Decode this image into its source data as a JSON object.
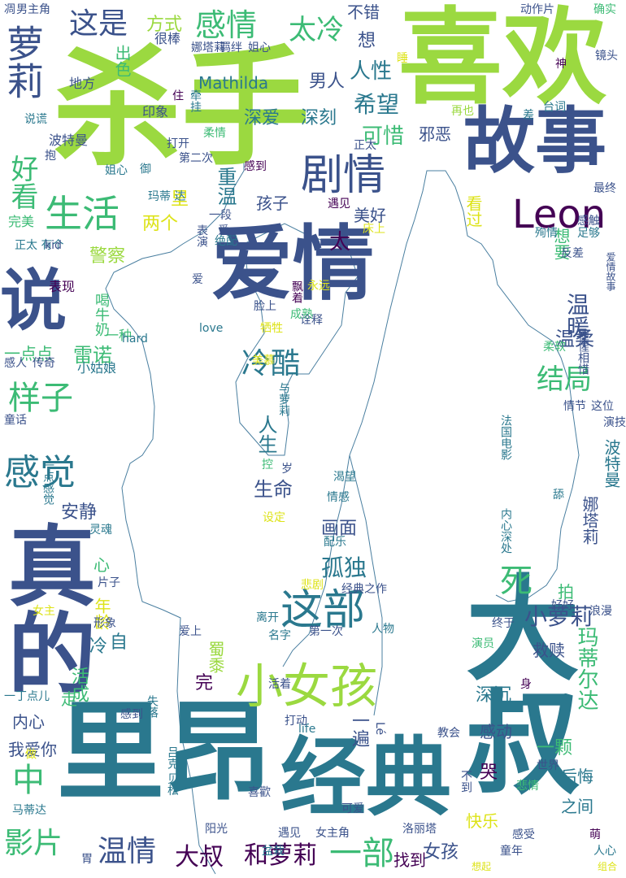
{
  "palette": {
    "lime": "#9bd940",
    "green": "#3cbb75",
    "teal": "#2a788e",
    "blue": "#3b528b",
    "purple": "#440154",
    "yellow": "#dde318",
    "outline": "#4a7fa0"
  },
  "words": [
    {
      "text": "杀手",
      "color": "#9bd940"
    },
    {
      "text": "喜欢",
      "color": "#9bd940"
    },
    {
      "text": "里昂",
      "color": "#2a788e"
    },
    {
      "text": "经典",
      "color": "#2a788e"
    },
    {
      "text": "大叔",
      "color": "#2a788e"
    },
    {
      "text": "真的",
      "color": "#3b528b"
    },
    {
      "text": "故事",
      "color": "#3b528b"
    },
    {
      "text": "爱情",
      "color": "#3b528b"
    },
    {
      "text": "说",
      "color": "#3b528b"
    },
    {
      "text": "爱",
      "color": "#3b528b"
    },
    {
      "text": "Leon",
      "color": "#440154"
    },
    {
      "text": "小女孩",
      "color": "#9bd940"
    },
    {
      "text": "剧情",
      "color": "#3b528b"
    },
    {
      "text": "这部",
      "color": "#2a788e"
    },
    {
      "text": "生活",
      "color": "#3cbb75"
    },
    {
      "text": "萝莉",
      "color": "#3b528b"
    },
    {
      "text": "感情",
      "color": "#3cbb75"
    },
    {
      "text": "这是",
      "color": "#3b528b"
    },
    {
      "text": "太冷",
      "color": "#3cbb75"
    },
    {
      "text": "感觉",
      "color": "#2a788e"
    },
    {
      "text": "样子",
      "color": "#3cbb75"
    },
    {
      "text": "好看",
      "color": "#3cbb75"
    },
    {
      "text": "影片",
      "color": "#3cbb75"
    },
    {
      "text": "温情",
      "color": "#3b528b"
    },
    {
      "text": "大叔",
      "color": "#440154"
    },
    {
      "text": "和萝莉",
      "color": "#440154"
    },
    {
      "text": "一部",
      "color": "#3cbb75"
    },
    {
      "text": "结局",
      "color": "#3cbb75"
    },
    {
      "text": "冷酷",
      "color": "#2a788e"
    },
    {
      "text": "死",
      "color": "#3cbb75"
    },
    {
      "text": "中",
      "color": "#3cbb75"
    },
    {
      "text": "孤独",
      "color": "#2a788e"
    },
    {
      "text": "小萝莉",
      "color": "#3b528b"
    },
    {
      "text": "玛蒂尔达",
      "color": "#3cbb75"
    },
    {
      "text": "希望",
      "color": "#2a788e"
    },
    {
      "text": "可惜",
      "color": "#3cbb75"
    },
    {
      "text": "人性",
      "color": "#2a788e"
    },
    {
      "text": "Mathilda",
      "color": "#2a788e"
    },
    {
      "text": "男人",
      "color": "#3b528b"
    },
    {
      "text": "深爱",
      "color": "#2a788e"
    },
    {
      "text": "深刻",
      "color": "#2a788e"
    },
    {
      "text": "温暖",
      "color": "#3b528b"
    },
    {
      "text": "温柔",
      "color": "#3b528b"
    },
    {
      "text": "重温",
      "color": "#2a788e"
    },
    {
      "text": "方式",
      "color": "#9bd940"
    },
    {
      "text": "出色",
      "color": "#3cbb75"
    },
    {
      "text": "不错",
      "color": "#3b528b"
    },
    {
      "text": "想",
      "color": "#3b528b"
    },
    {
      "text": "邪恶",
      "color": "#3b528b"
    },
    {
      "text": "孩子",
      "color": "#3b528b"
    },
    {
      "text": "美好",
      "color": "#3b528b"
    },
    {
      "text": "太",
      "color": "#440154"
    },
    {
      "text": "两个",
      "color": "#dde318"
    },
    {
      "text": "里",
      "color": "#dde318"
    },
    {
      "text": "想要",
      "color": "#3cbb75"
    },
    {
      "text": "警察",
      "color": "#9bd940"
    },
    {
      "text": "看过",
      "color": "#dde318"
    },
    {
      "text": "雷诺",
      "color": "#3cbb75"
    },
    {
      "text": "一点点",
      "color": "#3cbb75"
    },
    {
      "text": "小姑娘",
      "color": "#2a788e"
    },
    {
      "text": "人生",
      "color": "#2a788e"
    },
    {
      "text": "生命",
      "color": "#3b528b"
    },
    {
      "text": "安静",
      "color": "#3b528b"
    },
    {
      "text": "画面",
      "color": "#3b528b"
    },
    {
      "text": "完",
      "color": "#440154"
    },
    {
      "text": "内心",
      "color": "#3b528b"
    },
    {
      "text": "我爱你",
      "color": "#3b528b"
    },
    {
      "text": "一遍",
      "color": "#3b528b"
    },
    {
      "text": "深沉",
      "color": "#2a788e"
    },
    {
      "text": "感动",
      "color": "#3b528b"
    },
    {
      "text": "一颗",
      "color": "#3cbb75"
    },
    {
      "text": "哭",
      "color": "#440154"
    },
    {
      "text": "后悔",
      "color": "#2a788e"
    },
    {
      "text": "之间",
      "color": "#2a788e"
    },
    {
      "text": "女孩",
      "color": "#3b528b"
    },
    {
      "text": "找到",
      "color": "#440154"
    },
    {
      "text": "快乐",
      "color": "#dde318"
    },
    {
      "text": "救赎",
      "color": "#3b528b"
    },
    {
      "text": "拍",
      "color": "#3cbb75"
    },
    {
      "text": "年龄",
      "color": "#dde318"
    },
    {
      "text": "心",
      "color": "#3cbb75"
    },
    {
      "text": "冷",
      "color": "#2a788e"
    },
    {
      "text": "自",
      "color": "#2a788e"
    },
    {
      "text": "活成",
      "color": "#3cbb75"
    },
    {
      "text": "走",
      "color": "#3cbb75"
    },
    {
      "text": "喝牛奶",
      "color": "#3cbb75"
    },
    {
      "text": "表现",
      "color": "#440154"
    },
    {
      "text": "完美",
      "color": "#3cbb75"
    },
    {
      "text": "一种",
      "color": "#3cbb75"
    },
    {
      "text": "地方",
      "color": "#3b528b"
    },
    {
      "text": "很棒",
      "color": "#3b528b"
    },
    {
      "text": "印象",
      "color": "#3b528b"
    },
    {
      "text": "波特曼",
      "color": "#3b528b"
    },
    {
      "text": "打开",
      "color": "#3b528b"
    },
    {
      "text": "第二次",
      "color": "#3b528b"
    },
    {
      "text": "感到",
      "color": "#440154"
    },
    {
      "text": "男主角",
      "color": "#3b528b"
    },
    {
      "text": "动作片",
      "color": "#3b528b"
    },
    {
      "text": "确实",
      "color": "#3cbb75"
    },
    {
      "text": "镜头",
      "color": "#3b528b"
    },
    {
      "text": "神",
      "color": "#440154"
    },
    {
      "text": "台词",
      "color": "#2a788e"
    },
    {
      "text": "差",
      "color": "#2a788e"
    },
    {
      "text": "再也",
      "color": "#9bd940"
    },
    {
      "text": "最终",
      "color": "#3b528b"
    },
    {
      "text": "感触",
      "color": "#3b528b"
    },
    {
      "text": "殉情",
      "color": "#2a788e"
    },
    {
      "text": "足够",
      "color": "#2a788e"
    },
    {
      "text": "反差",
      "color": "#3b528b"
    },
    {
      "text": "爱情故事",
      "color": "#3b528b"
    },
    {
      "text": "惺惺相惜",
      "color": "#3b528b"
    },
    {
      "text": "柔软",
      "color": "#3cbb75"
    },
    {
      "text": "情节",
      "color": "#3b528b"
    },
    {
      "text": "这位",
      "color": "#3b528b"
    },
    {
      "text": "演技",
      "color": "#3b528b"
    },
    {
      "text": "法国电影",
      "color": "#2a788e"
    },
    {
      "text": "波特曼",
      "color": "#2a788e"
    },
    {
      "text": "娜塔莉",
      "color": "#3b528b"
    },
    {
      "text": "内心深处",
      "color": "#2a788e"
    },
    {
      "text": "舔",
      "color": "#2a788e"
    },
    {
      "text": "好好",
      "color": "#3b528b"
    },
    {
      "text": "浪漫",
      "color": "#3b528b"
    },
    {
      "text": "终于",
      "color": "#3b528b"
    },
    {
      "text": "演员",
      "color": "#3cbb75"
    },
    {
      "text": "身",
      "color": "#440154"
    },
    {
      "text": "悲情",
      "color": "#3cbb75"
    },
    {
      "text": "世界",
      "color": "#3b528b"
    },
    {
      "text": "教会",
      "color": "#3b528b"
    },
    {
      "text": "萌",
      "color": "#440154"
    },
    {
      "text": "人心",
      "color": "#2a788e"
    },
    {
      "text": "组合",
      "color": "#dde318"
    },
    {
      "text": "感受",
      "color": "#3b528b"
    },
    {
      "text": "童年",
      "color": "#3b528b"
    },
    {
      "text": "想起",
      "color": "#dde318"
    },
    {
      "text": "洛丽塔",
      "color": "#3b528b"
    },
    {
      "text": "女主角",
      "color": "#3b528b"
    },
    {
      "text": "遇见",
      "color": "#3b528b"
    },
    {
      "text": "阳光",
      "color": "#3b528b"
    },
    {
      "text": "胃",
      "color": "#3b528b"
    },
    {
      "text": "盆栽",
      "color": "#2a788e"
    },
    {
      "text": "可爱",
      "color": "#3b528b"
    },
    {
      "text": "喜歡",
      "color": "#3b528b"
    },
    {
      "text": "吕克 贝松",
      "color": "#2a788e"
    },
    {
      "text": "马蒂达",
      "color": "#2a788e"
    },
    {
      "text": "做",
      "color": "#dde318"
    },
    {
      "text": "一丁点儿",
      "color": "#2a788e"
    },
    {
      "text": "感到",
      "color": "#3b528b"
    },
    {
      "text": "失落",
      "color": "#2a788e"
    },
    {
      "text": "蜀黍",
      "color": "#9bd940"
    },
    {
      "text": "打动",
      "color": "#3b528b"
    },
    {
      "text": "活着",
      "color": "#3b528b"
    },
    {
      "text": "名字",
      "color": "#2a788e"
    },
    {
      "text": "第一次",
      "color": "#3b528b"
    },
    {
      "text": "人物",
      "color": "#2a788e"
    },
    {
      "text": "爱上",
      "color": "#3b528b"
    },
    {
      "text": "离开",
      "color": "#2a788e"
    },
    {
      "text": "形象",
      "color": "#3b528b"
    },
    {
      "text": "女主",
      "color": "#dde318"
    },
    {
      "text": "片子",
      "color": "#3b528b"
    },
    {
      "text": "悲剧",
      "color": "#dde318"
    },
    {
      "text": "经典之作",
      "color": "#3b528b"
    },
    {
      "text": "配乐",
      "color": "#2a788e"
    },
    {
      "text": "情感",
      "color": "#2a788e"
    },
    {
      "text": "渴望",
      "color": "#2a788e"
    },
    {
      "text": "灵魂",
      "color": "#2a788e"
    },
    {
      "text": "设定",
      "color": "#dde318"
    },
    {
      "text": "控",
      "color": "#3cbb75"
    },
    {
      "text": "岁",
      "color": "#3b528b"
    },
    {
      "text": "一点感觉",
      "color": "#2a788e"
    },
    {
      "text": "与萝莉",
      "color": "#2a788e"
    },
    {
      "text": "美慕",
      "color": "#dde318"
    },
    {
      "text": "诠释",
      "color": "#3b528b"
    },
    {
      "text": "牺牲",
      "color": "#dde318"
    },
    {
      "text": "love",
      "color": "#2a788e"
    },
    {
      "text": "成熟",
      "color": "#3cbb75"
    },
    {
      "text": "脸上",
      "color": "#3b528b"
    },
    {
      "text": "爱",
      "color": "#3b528b"
    },
    {
      "text": "永远",
      "color": "#dde318"
    },
    {
      "text": "飘着",
      "color": "#440154"
    },
    {
      "text": "遇见",
      "color": "#440154"
    },
    {
      "text": "床上",
      "color": "#dde318"
    },
    {
      "text": "绝配",
      "color": "#2a788e"
    },
    {
      "text": "表演",
      "color": "#3b528b"
    },
    {
      "text": "一段",
      "color": "#3b528b"
    },
    {
      "text": "玛蒂 达",
      "color": "#2a788e"
    },
    {
      "text": "御",
      "color": "#2a788e"
    },
    {
      "text": "姐心",
      "color": "#2a788e"
    },
    {
      "text": "抱",
      "color": "#3b528b"
    },
    {
      "text": "正太 有个",
      "color": "#2a788e"
    },
    {
      "text": "kid",
      "color": "#3b528b"
    },
    {
      "text": "说谎",
      "color": "#2a788e"
    },
    {
      "text": "hard",
      "color": "#2a788e"
    },
    {
      "text": "感人",
      "color": "#3b528b"
    },
    {
      "text": "传奇",
      "color": "#3b528b"
    },
    {
      "text": "童话",
      "color": "#3b528b"
    },
    {
      "text": "娜塔莉",
      "color": "#3b528b"
    },
    {
      "text": "羁绊",
      "color": "#3b528b"
    },
    {
      "text": "姐心",
      "color": "#3b528b"
    },
    {
      "text": "正太",
      "color": "#3b528b"
    },
    {
      "text": "睡",
      "color": "#dde318"
    },
    {
      "text": "住",
      "color": "#440154"
    },
    {
      "text": "牵挂",
      "color": "#2a788e"
    },
    {
      "text": "柔情",
      "color": "#3cbb75"
    },
    {
      "text": "life",
      "color": "#2a788e"
    },
    {
      "text": "Lé",
      "color": "#3b528b"
    },
    {
      "text": "不到",
      "color": "#3b528b"
    },
    {
      "text": "凋",
      "color": "#3b528b"
    }
  ]
}
